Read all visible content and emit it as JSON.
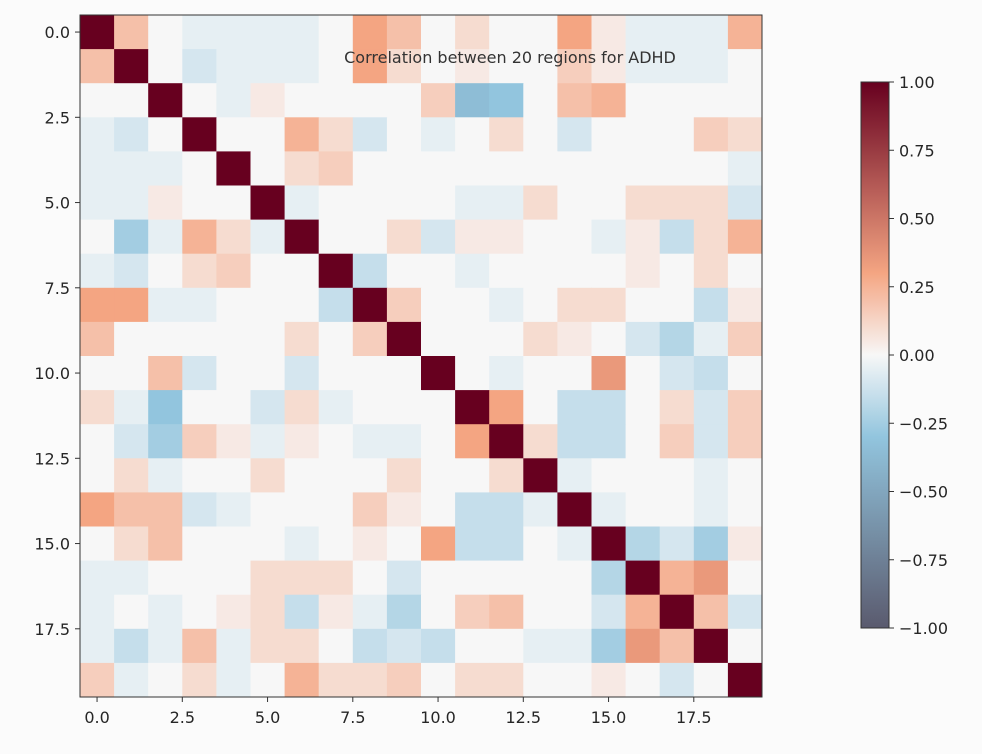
{
  "chart_data": {
    "type": "heatmap",
    "title": "Correlation between 20 regions for ADHD",
    "xlabel": "",
    "ylabel": "",
    "rows": 20,
    "cols": 20,
    "xlim": [
      -0.5,
      19.5
    ],
    "ylim": [
      19.5,
      -0.5
    ],
    "x_ticks": [
      0.0,
      2.5,
      5.0,
      7.5,
      10.0,
      12.5,
      15.0,
      17.5
    ],
    "x_tick_labels": [
      "0.0",
      "2.5",
      "5.0",
      "7.5",
      "10.0",
      "12.5",
      "15.0",
      "17.5"
    ],
    "y_ticks": [
      0.0,
      2.5,
      5.0,
      7.5,
      10.0,
      12.5,
      15.0,
      17.5
    ],
    "y_tick_labels": [
      "0.0",
      "2.5",
      "5.0",
      "7.5",
      "10.0",
      "12.5",
      "15.0",
      "17.5"
    ],
    "colormap": "RdGy_r",
    "vmin": -1.0,
    "vmax": 1.0,
    "colorbar": {
      "ticks": [
        1.0,
        0.75,
        0.5,
        0.25,
        0.0,
        -0.25,
        -0.5,
        -0.75,
        -1.0
      ],
      "tick_labels": [
        "1.00",
        "0.75",
        "0.50",
        "0.25",
        "0.00",
        "−0.25",
        "−0.50",
        "−0.75",
        "−1.00"
      ]
    },
    "colors": {
      "high": "#67001f",
      "positive": "#f4a582",
      "mid": "#f7f7f7",
      "negative": "#92c5de",
      "low": "#5a5a6e"
    },
    "values": [
      [
        1.0,
        0.2,
        0.0,
        -0.05,
        -0.05,
        -0.05,
        -0.05,
        0.0,
        0.3,
        0.2,
        0.0,
        0.1,
        0.0,
        0.0,
        0.3,
        0.05,
        -0.05,
        -0.05,
        -0.05,
        0.25
      ],
      [
        0.2,
        1.0,
        0.0,
        -0.1,
        -0.05,
        -0.05,
        -0.05,
        0.0,
        0.3,
        0.1,
        0.0,
        0.05,
        0.0,
        0.0,
        0.15,
        0.05,
        -0.05,
        -0.05,
        -0.05,
        0.0
      ],
      [
        0.0,
        0.0,
        1.0,
        0.0,
        -0.05,
        0.05,
        0.0,
        0.0,
        0.0,
        0.0,
        0.15,
        -0.35,
        -0.3,
        0.0,
        0.2,
        0.25,
        0.0,
        0.0,
        0.0,
        0.0
      ],
      [
        -0.05,
        -0.1,
        0.0,
        1.0,
        0.0,
        0.0,
        0.25,
        0.1,
        -0.1,
        0.0,
        -0.05,
        0.0,
        0.1,
        0.0,
        -0.1,
        0.0,
        0.0,
        0.0,
        0.15,
        0.1
      ],
      [
        -0.05,
        -0.05,
        -0.05,
        0.0,
        1.0,
        0.0,
        0.1,
        0.15,
        0.0,
        0.0,
        0.0,
        0.0,
        0.0,
        0.0,
        0.0,
        0.0,
        0.0,
        0.0,
        0.0,
        -0.05
      ],
      [
        -0.05,
        -0.05,
        0.05,
        0.0,
        0.0,
        1.0,
        -0.05,
        0.0,
        0.0,
        0.0,
        0.0,
        -0.05,
        -0.05,
        0.1,
        0.0,
        0.0,
        0.1,
        0.1,
        0.1,
        -0.1
      ],
      [
        0.0,
        -0.25,
        -0.05,
        0.25,
        0.1,
        -0.05,
        1.0,
        0.0,
        0.0,
        0.1,
        -0.1,
        0.05,
        0.05,
        0.0,
        0.0,
        -0.05,
        0.05,
        -0.15,
        0.1,
        0.25
      ],
      [
        -0.05,
        -0.1,
        0.0,
        0.1,
        0.15,
        0.0,
        0.0,
        1.0,
        -0.15,
        0.0,
        0.0,
        -0.05,
        0.0,
        0.0,
        0.0,
        0.0,
        0.05,
        0.0,
        0.1,
        0.0
      ],
      [
        0.3,
        0.3,
        -0.05,
        -0.05,
        0.0,
        0.0,
        0.0,
        -0.15,
        1.0,
        0.15,
        0.0,
        0.0,
        -0.05,
        0.0,
        0.1,
        0.1,
        0.0,
        0.0,
        -0.15,
        0.05
      ],
      [
        0.2,
        0.0,
        0.0,
        0.0,
        0.0,
        0.0,
        0.1,
        0.0,
        0.15,
        1.0,
        0.0,
        0.0,
        0.0,
        0.1,
        0.05,
        0.0,
        -0.1,
        -0.2,
        -0.05,
        0.15
      ],
      [
        0.0,
        0.0,
        0.2,
        -0.1,
        0.0,
        0.0,
        -0.1,
        0.0,
        0.0,
        0.0,
        1.0,
        0.0,
        -0.05,
        0.0,
        0.0,
        0.35,
        0.0,
        -0.1,
        -0.15,
        0.0
      ],
      [
        0.1,
        -0.05,
        -0.3,
        0.0,
        0.0,
        -0.1,
        0.1,
        -0.05,
        0.0,
        0.0,
        0.0,
        1.0,
        0.3,
        0.0,
        -0.15,
        -0.15,
        0.0,
        0.1,
        -0.1,
        0.15
      ],
      [
        0.0,
        -0.1,
        -0.25,
        0.15,
        0.05,
        -0.05,
        0.05,
        0.0,
        -0.05,
        -0.05,
        0.0,
        0.3,
        1.0,
        0.1,
        -0.15,
        -0.15,
        0.0,
        0.15,
        -0.1,
        0.15
      ],
      [
        0.0,
        0.1,
        -0.05,
        0.0,
        0.0,
        0.1,
        0.0,
        0.0,
        0.0,
        0.1,
        0.0,
        0.0,
        0.1,
        1.0,
        -0.05,
        0.0,
        0.0,
        0.0,
        -0.05,
        0.0
      ],
      [
        0.3,
        0.2,
        0.2,
        -0.1,
        -0.05,
        0.0,
        0.0,
        0.0,
        0.15,
        0.05,
        0.0,
        -0.15,
        -0.15,
        -0.05,
        1.0,
        -0.05,
        0.0,
        0.0,
        -0.05,
        0.0
      ],
      [
        0.0,
        0.1,
        0.2,
        0.0,
        0.0,
        0.0,
        -0.05,
        0.0,
        0.05,
        0.0,
        0.3,
        -0.15,
        -0.15,
        0.0,
        -0.05,
        1.0,
        -0.2,
        -0.1,
        -0.25,
        0.05
      ],
      [
        -0.05,
        -0.05,
        0.0,
        0.0,
        0.0,
        0.1,
        0.1,
        0.1,
        0.0,
        -0.1,
        0.0,
        0.0,
        0.0,
        0.0,
        0.0,
        -0.2,
        1.0,
        0.25,
        0.35,
        0.0
      ],
      [
        -0.05,
        0.0,
        -0.05,
        0.0,
        0.05,
        0.1,
        -0.15,
        0.05,
        -0.05,
        -0.2,
        0.0,
        0.15,
        0.2,
        0.0,
        0.0,
        -0.1,
        0.25,
        1.0,
        0.2,
        -0.1
      ],
      [
        -0.05,
        -0.15,
        -0.05,
        0.2,
        -0.05,
        0.1,
        0.1,
        0.0,
        -0.15,
        -0.1,
        -0.15,
        0.0,
        0.0,
        -0.05,
        -0.05,
        -0.25,
        0.35,
        0.2,
        1.0,
        0.0
      ],
      [
        0.15,
        -0.05,
        0.0,
        0.1,
        -0.05,
        0.0,
        0.25,
        0.1,
        0.1,
        0.15,
        0.0,
        0.1,
        0.1,
        0.0,
        0.0,
        0.05,
        0.0,
        -0.1,
        0.0,
        1.0
      ]
    ]
  }
}
